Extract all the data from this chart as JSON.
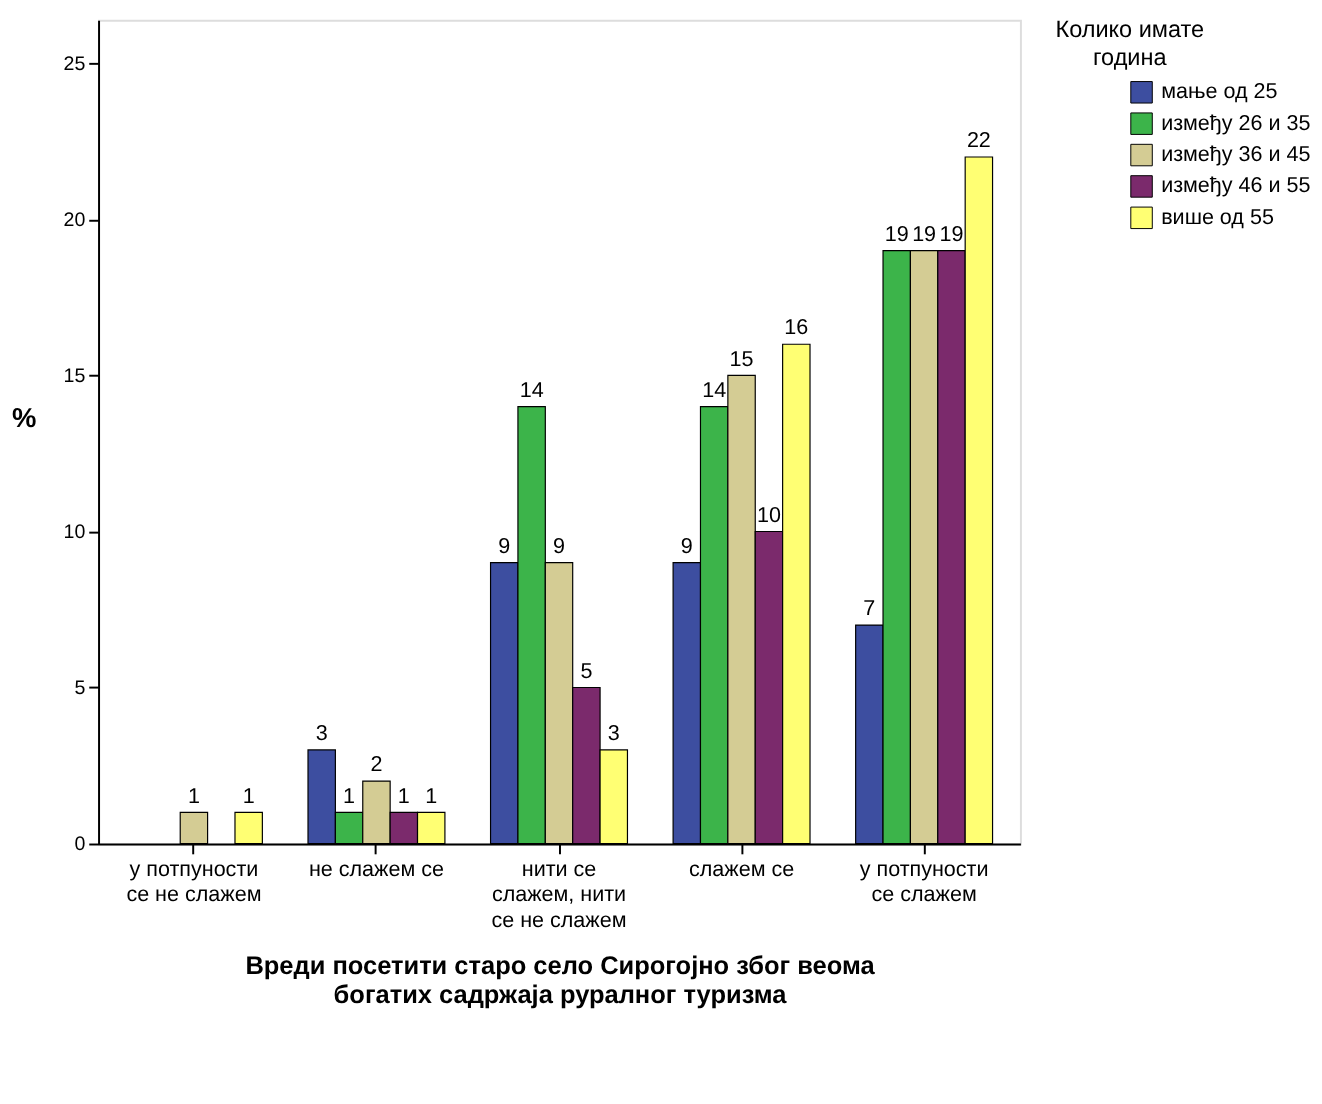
{
  "chart_data": {
    "type": "bar",
    "xlabel": "Вреди посетити старо село Сирогојно због веома богатих садржаја руралног туризма",
    "ylabel": "%",
    "legend_title": "Колико имате година",
    "categories": [
      "у потпуности се не слажем",
      "не слажем се",
      "нити се слажем, нити се не слажем",
      "слажем се",
      "у потпуности се слажем"
    ],
    "series": [
      {
        "name": "мање од 25",
        "color": "#3d4ea0",
        "values": [
          null,
          3,
          9,
          9,
          7
        ]
      },
      {
        "name": "између 26 и 35",
        "color": "#3cb44a",
        "values": [
          null,
          1,
          14,
          14,
          19
        ]
      },
      {
        "name": "између 36 и 45",
        "color": "#d4cc94",
        "values": [
          1,
          2,
          9,
          15,
          19
        ]
      },
      {
        "name": "између 46 и 55",
        "color": "#7b2a6c",
        "values": [
          null,
          1,
          5,
          10,
          19
        ]
      },
      {
        "name": "више од 55",
        "color": "#ffff73",
        "values": [
          1,
          1,
          3,
          16,
          22
        ]
      }
    ],
    "ylim": [
      0,
      26.4
    ],
    "yticks": [
      0,
      5,
      10,
      15,
      20,
      25
    ],
    "grid": false,
    "legend": "top right",
    "data_labels": true
  }
}
